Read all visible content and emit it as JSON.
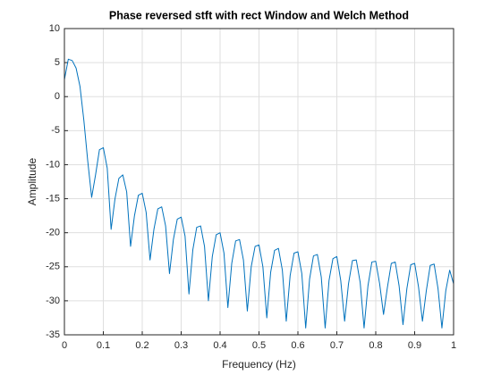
{
  "chart_data": {
    "type": "line",
    "title": "Phase reversed stft with rect Window and Welch Method",
    "x_label": "Frequency (Hz)",
    "y_label": "Amplitude",
    "x": [
      0,
      0.01,
      0.02,
      0.03,
      0.04,
      0.05,
      0.06,
      0.07,
      0.08,
      0.09,
      0.1,
      0.11,
      0.12,
      0.13,
      0.14,
      0.15,
      0.16,
      0.17,
      0.18,
      0.19,
      0.2,
      0.21,
      0.22,
      0.23,
      0.24,
      0.25,
      0.26,
      0.27,
      0.28,
      0.29,
      0.3,
      0.31,
      0.32,
      0.33,
      0.34,
      0.35,
      0.36,
      0.37,
      0.38,
      0.39,
      0.4,
      0.41,
      0.42,
      0.43,
      0.44,
      0.45,
      0.46,
      0.47,
      0.48,
      0.49,
      0.5,
      0.51,
      0.52,
      0.53,
      0.54,
      0.55,
      0.56,
      0.57,
      0.58,
      0.59,
      0.6,
      0.61,
      0.62,
      0.63,
      0.64,
      0.65,
      0.66,
      0.67,
      0.68,
      0.69,
      0.7,
      0.71,
      0.72,
      0.73,
      0.74,
      0.75,
      0.76,
      0.77,
      0.78,
      0.79,
      0.8,
      0.81,
      0.82,
      0.83,
      0.84,
      0.85,
      0.86,
      0.87,
      0.88,
      0.89,
      0.9,
      0.91,
      0.92,
      0.93,
      0.94,
      0.95,
      0.96,
      0.97,
      0.98,
      0.99,
      1
    ],
    "series": [
      {
        "color": "#0072bd",
        "values": [
          2.5,
          5.5,
          5.3,
          4.2,
          1.5,
          -3.5,
          -9.5,
          -14.8,
          -11.5,
          -7.8,
          -7.5,
          -10.5,
          -19.5,
          -15,
          -12,
          -11.5,
          -14,
          -22,
          -17.5,
          -14.5,
          -14.2,
          -17,
          -24,
          -19.5,
          -16.5,
          -16.2,
          -19,
          -26,
          -21,
          -18,
          -17.7,
          -20.5,
          -29,
          -22.5,
          -19.2,
          -19,
          -22,
          -30,
          -23.5,
          -20.3,
          -20,
          -23,
          -31,
          -24.5,
          -21.2,
          -21,
          -24,
          -31.5,
          -25,
          -22,
          -21.8,
          -25,
          -32.5,
          -25.8,
          -22.6,
          -22.3,
          -25.5,
          -33,
          -26.3,
          -23,
          -22.8,
          -26,
          -34,
          -26.8,
          -23.4,
          -23.2,
          -26.5,
          -34,
          -27,
          -23.8,
          -23.5,
          -27,
          -33,
          -27.5,
          -24.1,
          -24,
          -27.3,
          -34,
          -27.8,
          -24.3,
          -24.2,
          -27.5,
          -32,
          -28,
          -24.5,
          -24.3,
          -27.8,
          -33.5,
          -28.2,
          -24.7,
          -24.5,
          -28,
          -33,
          -28.5,
          -24.8,
          -24.6,
          -28.2,
          -34,
          -28.5,
          -25.5,
          -27.5
        ]
      }
    ],
    "xlim": [
      0,
      1
    ],
    "xticks": [
      0,
      0.1,
      0.2,
      0.3,
      0.4,
      0.5,
      0.6,
      0.7,
      0.8,
      0.9,
      1
    ],
    "ylim": [
      -35,
      10
    ],
    "yticks": [
      -35,
      -30,
      -25,
      -20,
      -15,
      -10,
      -5,
      0,
      5,
      10
    ],
    "grid": true
  }
}
